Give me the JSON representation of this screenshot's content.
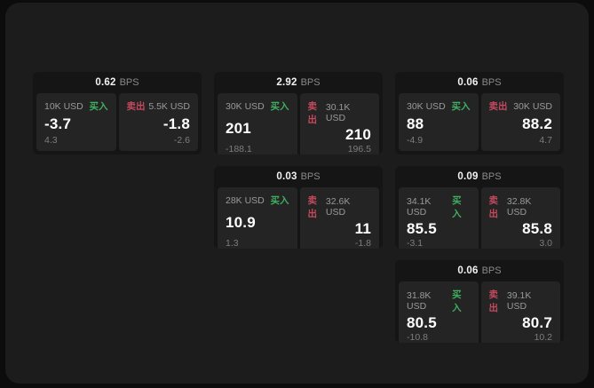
{
  "labels": {
    "bps": "BPS",
    "buy": "买入",
    "sell": "卖出"
  },
  "colors": {
    "buy": "#3faf5f",
    "sell": "#c4495d",
    "page_bg": "#1c1c1c",
    "card_bg": "#151515",
    "panel_bg": "#242424"
  },
  "cards": [
    {
      "row": 1,
      "col": 1,
      "bps": "0.62",
      "buy": {
        "size": "10K USD",
        "price": "-3.7",
        "delta": "4.3"
      },
      "sell": {
        "size": "5.5K USD",
        "price": "-1.8",
        "delta": "-2.6"
      }
    },
    {
      "row": 1,
      "col": 2,
      "bps": "2.92",
      "buy": {
        "size": "30K USD",
        "price": "201",
        "delta": "-188.1"
      },
      "sell": {
        "size": "30.1K USD",
        "price": "210",
        "delta": "196.5"
      }
    },
    {
      "row": 1,
      "col": 3,
      "bps": "0.06",
      "buy": {
        "size": "30K USD",
        "price": "88",
        "delta": "-4.9"
      },
      "sell": {
        "size": "30K USD",
        "price": "88.2",
        "delta": "4.7"
      }
    },
    {
      "row": 2,
      "col": 2,
      "bps": "0.03",
      "buy": {
        "size": "28K USD",
        "price": "10.9",
        "delta": "1.3"
      },
      "sell": {
        "size": "32.6K USD",
        "price": "11",
        "delta": "-1.8"
      }
    },
    {
      "row": 2,
      "col": 3,
      "bps": "0.09",
      "buy": {
        "size": "34.1K USD",
        "price": "85.5",
        "delta": "-3.1"
      },
      "sell": {
        "size": "32.8K USD",
        "price": "85.8",
        "delta": "3.0"
      }
    },
    {
      "row": 3,
      "col": 3,
      "bps": "0.06",
      "buy": {
        "size": "31.8K USD",
        "price": "80.5",
        "delta": "-10.8"
      },
      "sell": {
        "size": "39.1K USD",
        "price": "80.7",
        "delta": "10.2"
      }
    }
  ]
}
